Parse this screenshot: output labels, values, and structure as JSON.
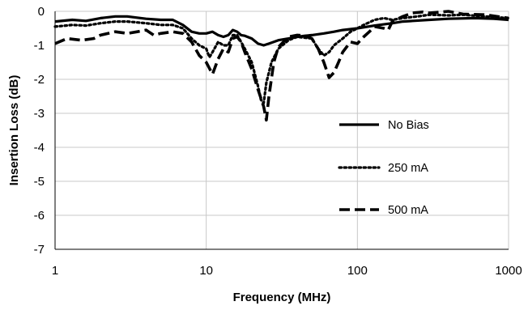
{
  "chart_data": {
    "type": "line",
    "xlabel": "Frequency (MHz)",
    "ylabel": "Insertion Loss (dB)",
    "x_scale": "log",
    "xlim": [
      1,
      1000
    ],
    "ylim": [
      -7,
      0
    ],
    "x_ticks": [
      1,
      10,
      100,
      1000
    ],
    "y_ticks": [
      0,
      -1,
      -2,
      -3,
      -4,
      -5,
      -6,
      -7
    ],
    "grid": true,
    "legend_position": "right-center",
    "series": [
      {
        "name": "No Bias",
        "style": "solid",
        "points": [
          [
            1,
            -0.3
          ],
          [
            1.3,
            -0.25
          ],
          [
            1.6,
            -0.28
          ],
          [
            2,
            -0.2
          ],
          [
            2.5,
            -0.15
          ],
          [
            3,
            -0.15
          ],
          [
            4,
            -0.22
          ],
          [
            5,
            -0.25
          ],
          [
            6,
            -0.25
          ],
          [
            7,
            -0.4
          ],
          [
            8,
            -0.6
          ],
          [
            9,
            -0.65
          ],
          [
            10,
            -0.65
          ],
          [
            11,
            -0.6
          ],
          [
            12,
            -0.7
          ],
          [
            13,
            -0.75
          ],
          [
            14,
            -0.7
          ],
          [
            15,
            -0.55
          ],
          [
            16,
            -0.6
          ],
          [
            17,
            -0.7
          ],
          [
            18,
            -0.72
          ],
          [
            20,
            -0.8
          ],
          [
            22,
            -0.95
          ],
          [
            24,
            -1.0
          ],
          [
            26,
            -0.95
          ],
          [
            28,
            -0.9
          ],
          [
            30,
            -0.85
          ],
          [
            35,
            -0.8
          ],
          [
            40,
            -0.75
          ],
          [
            45,
            -0.72
          ],
          [
            50,
            -0.7
          ],
          [
            60,
            -0.65
          ],
          [
            70,
            -0.6
          ],
          [
            80,
            -0.55
          ],
          [
            100,
            -0.5
          ],
          [
            130,
            -0.42
          ],
          [
            170,
            -0.35
          ],
          [
            200,
            -0.3
          ],
          [
            300,
            -0.25
          ],
          [
            400,
            -0.22
          ],
          [
            600,
            -0.2
          ],
          [
            800,
            -0.22
          ],
          [
            1000,
            -0.25
          ]
        ]
      },
      {
        "name": "250 mA",
        "style": "dotted",
        "points": [
          [
            1,
            -0.45
          ],
          [
            1.3,
            -0.4
          ],
          [
            1.6,
            -0.42
          ],
          [
            2,
            -0.35
          ],
          [
            2.5,
            -0.3
          ],
          [
            3,
            -0.3
          ],
          [
            4,
            -0.35
          ],
          [
            5,
            -0.4
          ],
          [
            6,
            -0.4
          ],
          [
            7,
            -0.5
          ],
          [
            8,
            -0.8
          ],
          [
            9,
            -1.0
          ],
          [
            10,
            -1.1
          ],
          [
            10.5,
            -1.35
          ],
          [
            11,
            -1.2
          ],
          [
            12,
            -0.9
          ],
          [
            13,
            -1.0
          ],
          [
            14,
            -1.0
          ],
          [
            15,
            -0.7
          ],
          [
            16,
            -0.7
          ],
          [
            17,
            -0.9
          ],
          [
            18,
            -1.1
          ],
          [
            20,
            -1.5
          ],
          [
            22,
            -2.2
          ],
          [
            23,
            -2.6
          ],
          [
            24,
            -2.7
          ],
          [
            25,
            -2.1
          ],
          [
            27,
            -1.5
          ],
          [
            30,
            -1.1
          ],
          [
            35,
            -0.85
          ],
          [
            40,
            -0.75
          ],
          [
            50,
            -0.8
          ],
          [
            55,
            -1.1
          ],
          [
            60,
            -1.3
          ],
          [
            65,
            -1.2
          ],
          [
            70,
            -1.0
          ],
          [
            80,
            -0.8
          ],
          [
            90,
            -0.6
          ],
          [
            100,
            -0.5
          ],
          [
            110,
            -0.4
          ],
          [
            130,
            -0.25
          ],
          [
            150,
            -0.2
          ],
          [
            170,
            -0.25
          ],
          [
            200,
            -0.2
          ],
          [
            250,
            -0.15
          ],
          [
            300,
            -0.1
          ],
          [
            400,
            -0.12
          ],
          [
            500,
            -0.1
          ],
          [
            700,
            -0.15
          ],
          [
            1000,
            -0.2
          ]
        ]
      },
      {
        "name": "500 mA",
        "style": "dashed",
        "points": [
          [
            1,
            -0.95
          ],
          [
            1.2,
            -0.8
          ],
          [
            1.5,
            -0.85
          ],
          [
            1.8,
            -0.8
          ],
          [
            2,
            -0.7
          ],
          [
            2.5,
            -0.6
          ],
          [
            3,
            -0.65
          ],
          [
            3.5,
            -0.6
          ],
          [
            4,
            -0.55
          ],
          [
            4.5,
            -0.7
          ],
          [
            5,
            -0.65
          ],
          [
            6,
            -0.6
          ],
          [
            7,
            -0.65
          ],
          [
            8,
            -0.9
          ],
          [
            9,
            -1.3
          ],
          [
            10,
            -1.5
          ],
          [
            11,
            -1.85
          ],
          [
            12,
            -1.4
          ],
          [
            13,
            -1.1
          ],
          [
            14,
            -1.2
          ],
          [
            15,
            -0.8
          ],
          [
            16,
            -0.75
          ],
          [
            17,
            -0.9
          ],
          [
            18,
            -1.2
          ],
          [
            20,
            -1.7
          ],
          [
            22,
            -2.3
          ],
          [
            24,
            -2.8
          ],
          [
            25,
            -3.2
          ],
          [
            26,
            -2.5
          ],
          [
            28,
            -1.5
          ],
          [
            30,
            -1.05
          ],
          [
            35,
            -0.75
          ],
          [
            40,
            -0.7
          ],
          [
            45,
            -0.72
          ],
          [
            50,
            -0.8
          ],
          [
            55,
            -1.1
          ],
          [
            60,
            -1.5
          ],
          [
            65,
            -1.95
          ],
          [
            70,
            -1.8
          ],
          [
            75,
            -1.5
          ],
          [
            80,
            -1.2
          ],
          [
            90,
            -0.9
          ],
          [
            100,
            -0.95
          ],
          [
            110,
            -0.75
          ],
          [
            120,
            -0.6
          ],
          [
            130,
            -0.45
          ],
          [
            150,
            -0.5
          ],
          [
            160,
            -0.55
          ],
          [
            170,
            -0.3
          ],
          [
            200,
            -0.15
          ],
          [
            230,
            -0.05
          ],
          [
            270,
            -0.02
          ],
          [
            300,
            -0.05
          ],
          [
            400,
            0
          ],
          [
            500,
            -0.08
          ],
          [
            700,
            -0.1
          ],
          [
            1000,
            -0.2
          ]
        ]
      }
    ]
  }
}
